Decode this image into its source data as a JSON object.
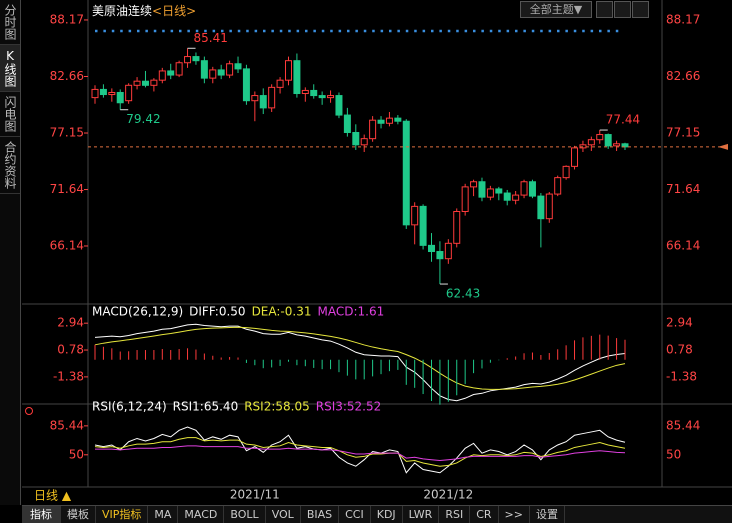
{
  "sidebar_tabs": [
    "分时图",
    "K线图",
    "闪电图",
    "合约资料"
  ],
  "header": {
    "title": "美原油连续",
    "period": "<日线>",
    "theme_button": "全部主题▼"
  },
  "footer": {
    "period_label": "日线 ▲",
    "tabs": [
      "指标",
      "模板",
      "VIP指标",
      "MA",
      "MACD",
      "BOLL",
      "VOL",
      "BIAS",
      "CCI",
      "KDJ",
      "LWR",
      "RSI",
      "CR",
      ">>",
      "设置"
    ]
  },
  "chart_data": [
    {
      "type": "candlestick",
      "categories": [
        null,
        null,
        null,
        null,
        null,
        null,
        null,
        null,
        null,
        null,
        null,
        null,
        null,
        null,
        null,
        null,
        null,
        null,
        null,
        "2021/11",
        null,
        null,
        null,
        null,
        null,
        null,
        null,
        null,
        null,
        null,
        null,
        null,
        null,
        null,
        null,
        null,
        null,
        null,
        null,
        null,
        null,
        null,
        "2021/12",
        null,
        null,
        null,
        null,
        null,
        null,
        null,
        null,
        null,
        null,
        null,
        null,
        null,
        null,
        null,
        null,
        null,
        null,
        null,
        null,
        null
      ],
      "open": [
        80.6,
        81.4,
        80.9,
        81.1,
        80.3,
        81.8,
        82.2,
        81.8,
        82.3,
        83.2,
        82.8,
        84.0,
        84.6,
        84.2,
        82.5,
        83.3,
        82.8,
        83.9,
        83.4,
        80.3,
        80.8,
        79.6,
        81.6,
        82.3,
        84.2,
        81.0,
        81.3,
        80.8,
        80.6,
        80.8,
        78.9,
        77.2,
        76.0,
        76.6,
        78.4,
        78.1,
        78.6,
        78.3,
        68.2,
        70.0,
        66.2,
        65.6,
        64.9,
        66.4,
        69.5,
        71.9,
        72.4,
        70.9,
        71.7,
        71.3,
        70.6,
        71.1,
        72.4,
        71.0,
        68.8,
        71.2,
        72.8,
        73.9,
        75.7,
        76.0,
        76.5,
        77.0,
        75.9,
        76.1
      ],
      "high": [
        81.8,
        81.9,
        81.5,
        81.4,
        82.0,
        82.6,
        83.2,
        82.5,
        83.5,
        83.9,
        84.2,
        85.41,
        85.0,
        84.6,
        83.6,
        83.8,
        84.2,
        84.6,
        83.8,
        81.2,
        81.5,
        81.9,
        82.6,
        84.6,
        84.9,
        81.6,
        81.9,
        81.2,
        81.3,
        81.1,
        79.6,
        78.0,
        77.0,
        78.8,
        78.8,
        79.2,
        78.9,
        78.5,
        70.4,
        70.2,
        67.4,
        66.6,
        66.8,
        69.8,
        72.2,
        72.6,
        72.8,
        72.0,
        71.9,
        71.6,
        71.5,
        72.6,
        72.6,
        71.3,
        71.4,
        73.0,
        74.0,
        75.9,
        76.4,
        76.8,
        77.44,
        77.1,
        76.4,
        76.2
      ],
      "low": [
        80.0,
        80.6,
        80.2,
        79.42,
        80.0,
        81.4,
        81.6,
        81.2,
        82.0,
        82.4,
        82.6,
        83.5,
        83.8,
        82.0,
        82.0,
        82.4,
        82.5,
        83.0,
        79.9,
        78.3,
        79.0,
        79.2,
        81.0,
        81.8,
        80.6,
        80.2,
        80.5,
        79.9,
        80.1,
        78.6,
        76.8,
        75.5,
        75.3,
        76.3,
        77.6,
        77.8,
        78.0,
        67.8,
        66.3,
        65.8,
        64.6,
        62.43,
        64.4,
        66.0,
        69.1,
        71.0,
        70.5,
        70.6,
        70.6,
        70.1,
        70.2,
        70.8,
        70.8,
        66.0,
        68.4,
        71.0,
        72.6,
        73.6,
        75.3,
        75.4,
        76.1,
        75.6,
        75.4,
        75.5
      ],
      "close": [
        81.4,
        80.9,
        81.1,
        80.1,
        81.8,
        82.2,
        81.8,
        82.3,
        83.2,
        82.8,
        84.0,
        84.6,
        84.2,
        82.5,
        83.3,
        82.8,
        83.9,
        83.4,
        80.3,
        80.8,
        79.6,
        81.6,
        82.3,
        84.2,
        81.0,
        81.3,
        80.8,
        80.6,
        80.8,
        78.9,
        77.2,
        76.0,
        76.6,
        78.4,
        78.1,
        78.6,
        78.3,
        68.2,
        70.0,
        66.2,
        65.6,
        64.9,
        66.4,
        69.5,
        71.9,
        72.4,
        70.9,
        71.7,
        71.3,
        70.6,
        71.1,
        72.4,
        71.0,
        68.8,
        71.2,
        72.8,
        73.9,
        75.7,
        76.0,
        76.5,
        77.0,
        75.9,
        76.1,
        75.8
      ],
      "up_color": "#ff3b3b",
      "down_color": "#1fc98a",
      "marked_highs": [
        11,
        60
      ],
      "marked_lows": [
        3,
        41
      ],
      "ylim": [
        60.68,
        89.14
      ],
      "yticks": [
        66.14,
        71.64,
        77.15,
        82.66,
        88.17
      ]
    },
    {
      "type": "macd",
      "indicator": "MACD(26,12,9)",
      "series": [
        {
          "label": "DIFF:0.50",
          "color": "#ffffff",
          "values": [
            1.8,
            1.85,
            1.9,
            1.85,
            1.95,
            2.1,
            2.2,
            2.3,
            2.45,
            2.5,
            2.65,
            2.8,
            2.85,
            2.75,
            2.7,
            2.65,
            2.7,
            2.7,
            2.45,
            2.3,
            2.1,
            2.05,
            2.05,
            2.2,
            2.0,
            1.9,
            1.75,
            1.6,
            1.5,
            1.25,
            0.95,
            0.6,
            0.4,
            0.35,
            0.3,
            0.3,
            0.25,
            -0.6,
            -1.0,
            -1.6,
            -2.3,
            -2.9,
            -3.2,
            -3.3,
            -3.1,
            -2.8,
            -2.7,
            -2.5,
            -2.4,
            -2.3,
            -2.2,
            -2.0,
            -1.9,
            -1.95,
            -1.8,
            -1.55,
            -1.25,
            -0.85,
            -0.5,
            -0.2,
            0.1,
            0.3,
            0.42,
            0.5
          ]
        },
        {
          "label": "DEA:-0.31",
          "color": "#e6e63c",
          "values": [
            1.2,
            1.33,
            1.44,
            1.52,
            1.61,
            1.71,
            1.81,
            1.91,
            2.02,
            2.11,
            2.22,
            2.34,
            2.44,
            2.5,
            2.54,
            2.56,
            2.59,
            2.61,
            2.58,
            2.52,
            2.44,
            2.36,
            2.3,
            2.28,
            2.22,
            2.16,
            2.08,
            1.98,
            1.88,
            1.75,
            1.59,
            1.39,
            1.19,
            1.02,
            0.88,
            0.76,
            0.66,
            0.41,
            0.13,
            -0.22,
            -0.64,
            -1.09,
            -1.51,
            -1.87,
            -2.12,
            -2.26,
            -2.35,
            -2.38,
            -2.38,
            -2.36,
            -2.33,
            -2.26,
            -2.19,
            -2.14,
            -2.07,
            -1.97,
            -1.83,
            -1.63,
            -1.4,
            -1.16,
            -0.91,
            -0.67,
            -0.45,
            -0.31
          ]
        },
        {
          "label": "MACD:1.61",
          "color": "#e040e0",
          "histogram": true,
          "up_color": "#ff3b3b",
          "down_color": "#1fc98a",
          "values": [
            1.2,
            1.04,
            0.92,
            0.66,
            0.68,
            0.78,
            0.78,
            0.78,
            0.86,
            0.78,
            0.86,
            0.92,
            0.82,
            0.5,
            0.32,
            0.18,
            0.22,
            0.18,
            -0.26,
            -0.44,
            -0.68,
            -0.62,
            -0.5,
            -0.16,
            -0.44,
            -0.52,
            -0.66,
            -0.76,
            -0.76,
            -1.0,
            -1.28,
            -1.58,
            -1.58,
            -1.34,
            -1.16,
            -0.92,
            -0.82,
            -2.02,
            -2.26,
            -2.76,
            -3.32,
            -3.62,
            -3.38,
            -2.86,
            -1.96,
            -1.08,
            -0.7,
            -0.24,
            -0.04,
            0.12,
            0.26,
            0.52,
            0.58,
            0.38,
            0.54,
            0.84,
            1.16,
            1.56,
            1.8,
            1.92,
            2.02,
            1.94,
            1.74,
            1.61
          ]
        }
      ],
      "ylim": [
        -3.4,
        4.0
      ],
      "yticks": [
        -1.38,
        0.78,
        2.94
      ]
    },
    {
      "type": "rsi",
      "indicator": "RSI(6,12,24)",
      "series": [
        {
          "label": "RSI1:65.40",
          "color": "#ffffff",
          "values": [
            62,
            60,
            62,
            56,
            66,
            70,
            67,
            70,
            75,
            72,
            80,
            84,
            80,
            68,
            72,
            69,
            74,
            72,
            55,
            60,
            53,
            62,
            66,
            74,
            58,
            60,
            57,
            56,
            58,
            47,
            40,
            36,
            44,
            54,
            52,
            56,
            54,
            28,
            40,
            32,
            30,
            28,
            36,
            46,
            58,
            64,
            52,
            56,
            54,
            50,
            54,
            62,
            56,
            44,
            56,
            62,
            66,
            74,
            76,
            78,
            80,
            72,
            68,
            65.4
          ]
        },
        {
          "label": "RSI2:58.05",
          "color": "#e6e63c",
          "values": [
            60,
            59,
            60,
            58,
            61,
            63,
            63,
            64,
            66,
            66,
            69,
            71,
            71,
            67,
            68,
            67,
            68,
            68,
            63,
            62,
            59,
            60,
            61,
            65,
            62,
            61,
            60,
            59,
            59,
            55,
            50,
            47,
            48,
            51,
            51,
            52,
            52,
            42,
            43,
            40,
            38,
            36,
            37,
            40,
            46,
            50,
            49,
            50,
            50,
            49,
            50,
            53,
            52,
            48,
            50,
            53,
            55,
            59,
            61,
            63,
            65,
            62,
            60,
            58.05
          ]
        },
        {
          "label": "RSI3:52.52",
          "color": "#e040e0",
          "values": [
            57,
            57,
            57,
            56,
            57,
            58,
            58,
            58,
            59,
            59,
            60,
            61,
            61,
            60,
            60,
            60,
            60,
            60,
            58,
            58,
            57,
            57,
            57,
            58,
            57,
            57,
            57,
            56,
            56,
            55,
            53,
            51,
            51,
            52,
            52,
            52,
            52,
            46,
            47,
            45,
            44,
            43,
            44,
            45,
            47,
            48,
            48,
            48,
            48,
            48,
            48,
            49,
            49,
            47,
            48,
            49,
            50,
            52,
            53,
            54,
            55,
            54,
            53,
            52.52
          ]
        }
      ],
      "ylim": [
        13,
        111
      ],
      "yticks": [
        50,
        85.44
      ]
    }
  ]
}
